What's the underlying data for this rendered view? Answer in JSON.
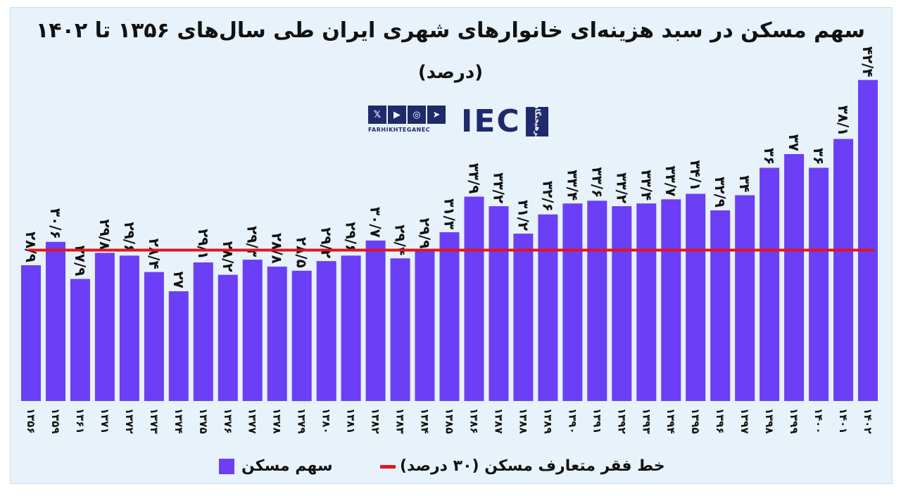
{
  "colors": {
    "bar": "#6a3ff6",
    "line": "#e2151b",
    "background": "#e7f2fa"
  },
  "logo": {
    "social_icons": [
      "x-icon",
      "youtube-icon",
      "instagram-icon",
      "telegram-icon"
    ],
    "subtitle": "FARHIKHTEGANEC",
    "wordmark": "IEC",
    "badge": "فرهیختگان"
  },
  "chart_data": {
    "type": "bar",
    "title": "سهم مسکن در سبد هزینه‌ای خانوارهای شهری ایران طی سال‌های ۱۳۵۶ تا ۱۴۰۲",
    "subtitle": "(درصد)",
    "categories": [
      "۱۳۵۶",
      "۱۳۵۹",
      "۱۳۶۱",
      "۱۳۷۱",
      "۱۳۷۲",
      "۱۳۷۳",
      "۱۳۷۴",
      "۱۳۷۵",
      "۱۳۷۶",
      "۱۳۷۷",
      "۱۳۷۸",
      "۱۳۷۹",
      "۱۳۸۰",
      "۱۳۸۱",
      "۱۳۸۲",
      "۱۳۸۳",
      "۱۳۸۴",
      "۱۳۸۵",
      "۱۳۸۶",
      "۱۳۸۷",
      "۱۳۸۸",
      "۱۳۸۹",
      "۱۳۹۰",
      "۱۳۹۱",
      "۱۳۹۲",
      "۱۳۹۳",
      "۱۳۹۴",
      "۱۳۹۵",
      "۱۳۹۶",
      "۱۳۹۷",
      "۱۳۹۸",
      "۱۳۹۹",
      "۱۴۰۰",
      "۱۴۰۱",
      "۱۴۰۲"
    ],
    "values": [
      28.9,
      30.6,
      27.9,
      29.8,
      29.6,
      28.4,
      27,
      29.1,
      28.2,
      29.3,
      28.8,
      28.5,
      29.2,
      29.6,
      30.7,
      29.4,
      29.9,
      31.3,
      33.9,
      33.2,
      31.2,
      32.6,
      33.4,
      33.6,
      33.2,
      33.4,
      33.7,
      34.1,
      32.9,
      34,
      36,
      37,
      36,
      38.1,
      42.4
    ],
    "labels": [
      "۲۸/۹",
      "۳۰/۶",
      "۲۷/۹",
      "۲۹/۸",
      "۲۹/۶",
      "۲۸/۴",
      "۲۷",
      "۲۹/۱",
      "۲۸/۲",
      "۲۹/۳",
      "۲۸/۸",
      "۲۸/۵",
      "۲۹/۲",
      "۲۹/۶",
      "۳۰/۷",
      "۲۹/۴",
      "۲۹/۹",
      "۳۱/۳",
      "۳۳/۹",
      "۳۳/۲",
      "۳۱/۲",
      "۳۲/۶",
      "۳۳/۴",
      "۳۳/۶",
      "۳۳/۲",
      "۳۳/۴",
      "۳۳/۷",
      "۳۴/۱",
      "۳۲/۹",
      "۳۴",
      "۳۶",
      "۳۷",
      "۳۶",
      "۳۸/۱",
      "۴۲/۴"
    ],
    "series": [
      {
        "name": "سهم مسکن",
        "kind": "bar"
      },
      {
        "name": "خط فقر  متعارف مسکن  (۳۰ درصد)",
        "kind": "line",
        "value": 30
      }
    ],
    "ylim": [
      19,
      43
    ],
    "grid": false,
    "legend_position": "bottom"
  }
}
